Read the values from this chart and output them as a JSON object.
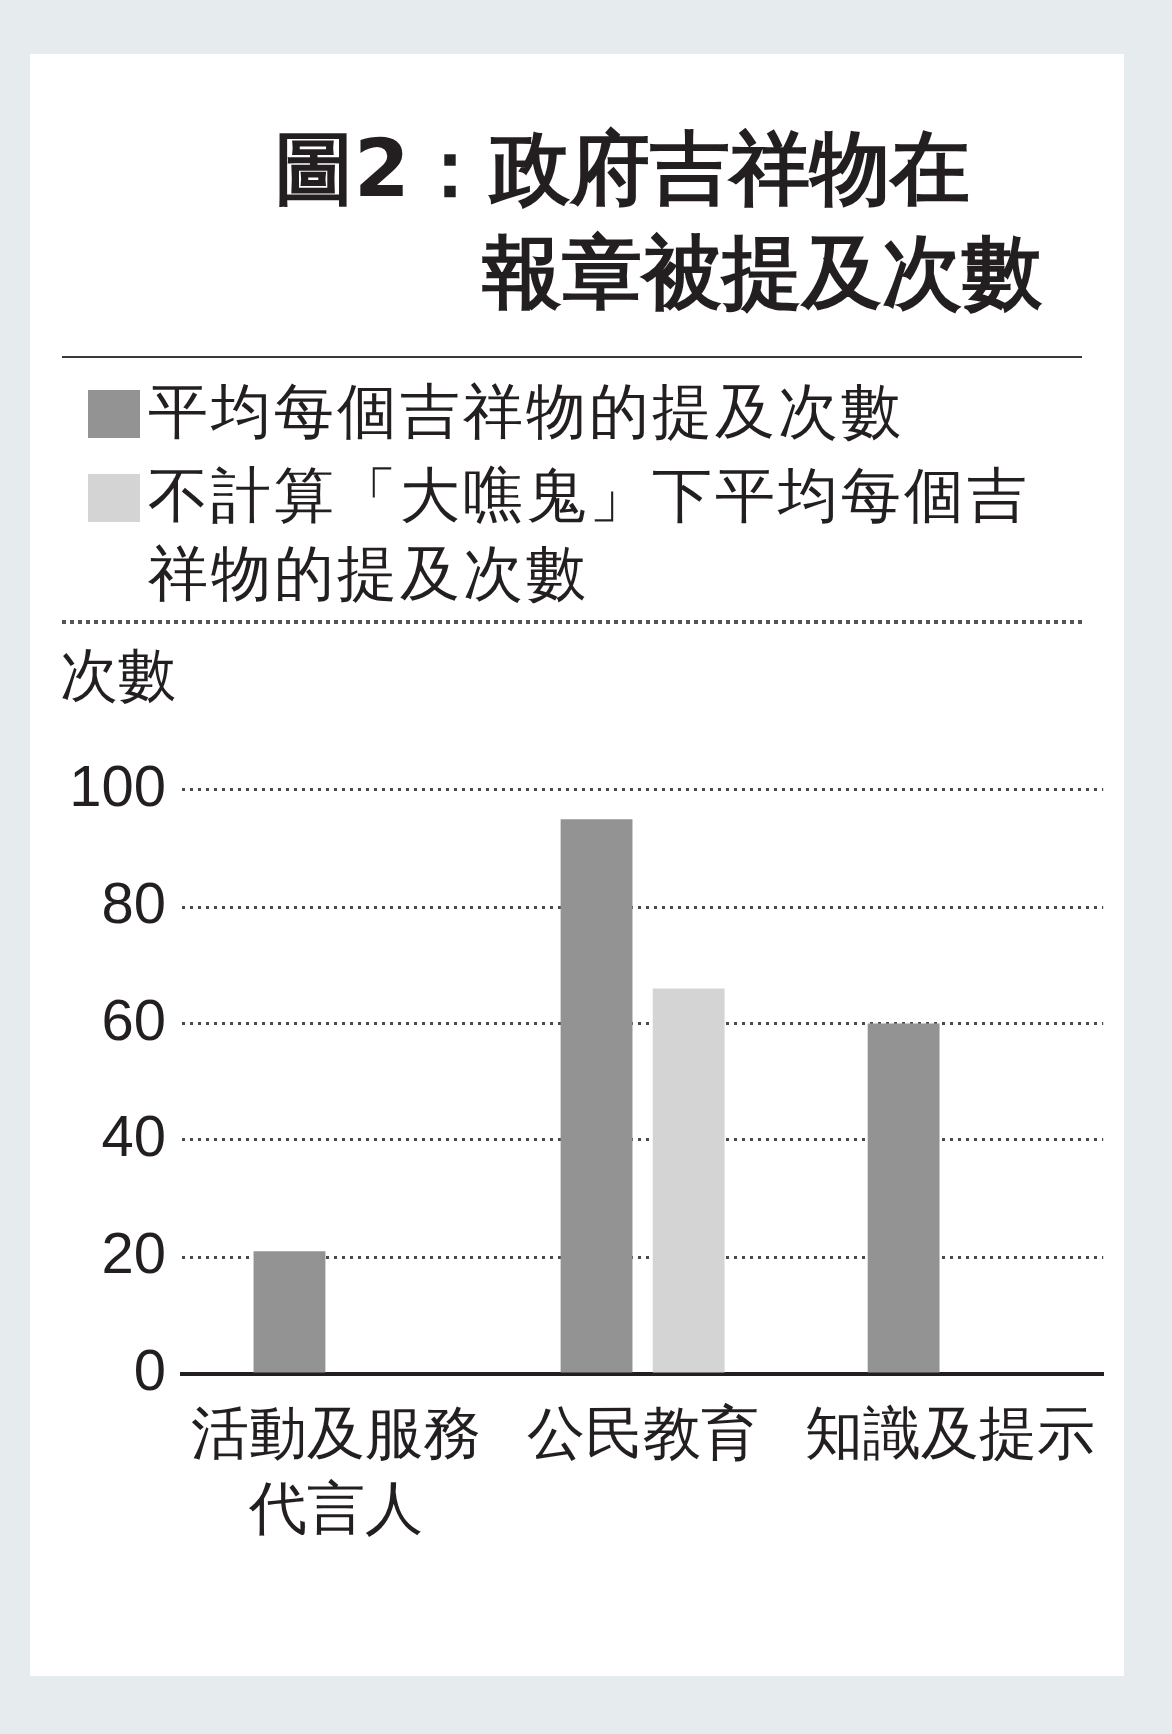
{
  "chart_data": {
    "type": "bar",
    "title": "圖2：政府吉祥物在報章被提及次數",
    "ylabel": "次數",
    "categories": [
      "活動及服務代言人",
      "公民教育",
      "知識及提示"
    ],
    "series": [
      {
        "name": "平均每個吉祥物的提及次數",
        "color": "#939393",
        "values": [
          21,
          95,
          60
        ]
      },
      {
        "name": "不計算「大噍鬼」下平均每個吉祥物的提及次數",
        "color": "#d4d4d4",
        "values": [
          null,
          66,
          null
        ]
      }
    ],
    "ylim": [
      0,
      100
    ],
    "yticks": [
      0,
      20,
      40,
      60,
      80,
      100
    ],
    "grid": "y",
    "legend": "top"
  }
}
